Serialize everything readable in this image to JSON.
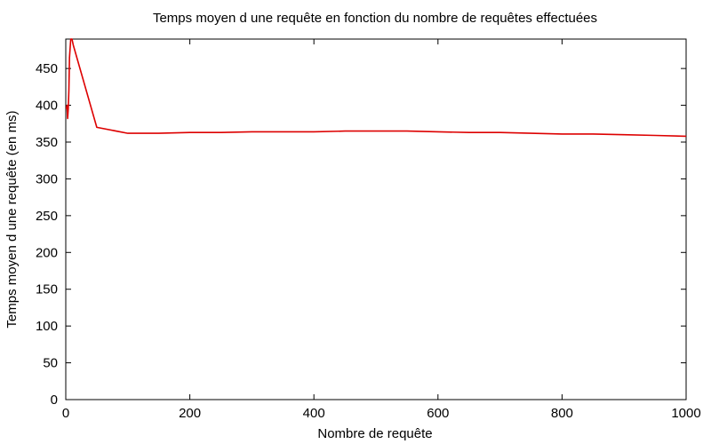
{
  "chart_data": {
    "type": "line",
    "title": "Temps moyen d une requête en fonction du nombre de requêtes effectuées",
    "xlabel": "Nombre de requête",
    "ylabel": "Temps moyen d une requête (en ms)",
    "xlim": [
      0,
      1000
    ],
    "ylim": [
      0,
      490
    ],
    "xticks": [
      0,
      200,
      400,
      600,
      800,
      1000
    ],
    "yticks": [
      0,
      50,
      100,
      150,
      200,
      250,
      300,
      350,
      400,
      450
    ],
    "grid": false,
    "line_color": "#dd0000",
    "series": [
      {
        "x": [
          1,
          2,
          3,
          4,
          5,
          6,
          8,
          10,
          12,
          50,
          100,
          150,
          200,
          250,
          300,
          350,
          400,
          450,
          500,
          550,
          600,
          650,
          700,
          750,
          800,
          850,
          900,
          950,
          1000
        ],
        "values": [
          395,
          400,
          382,
          395,
          420,
          465,
          492,
          490,
          482,
          370,
          362,
          362,
          363,
          363,
          364,
          364,
          364,
          365,
          365,
          365,
          364,
          363,
          363,
          362,
          361,
          361,
          360,
          359,
          358
        ]
      }
    ]
  }
}
